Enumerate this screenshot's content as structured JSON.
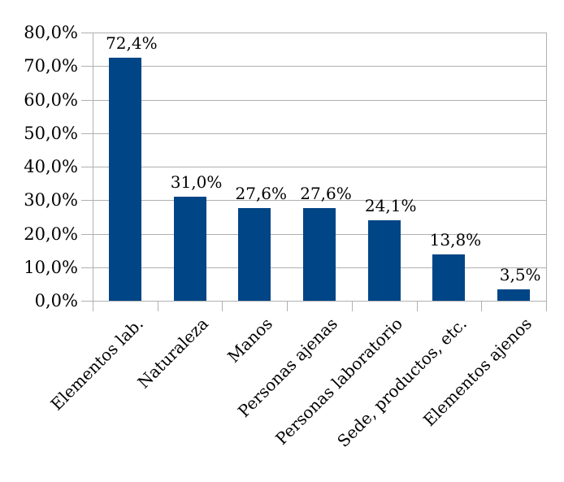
{
  "chart_data": {
    "type": "bar",
    "title": "",
    "xlabel": "",
    "ylabel": "",
    "legend": "none",
    "grid": "horizontal",
    "categories": [
      "Elementos lab.",
      "Naturaleza",
      "Manos",
      "Personas ajenas",
      "Personas laboratorio",
      "Sede, productos, etc.",
      "Elementos ajenos"
    ],
    "values": [
      72.4,
      31.0,
      27.6,
      27.6,
      24.1,
      13.8,
      3.5
    ],
    "value_labels": [
      "72,4%",
      "31,0%",
      "27,6%",
      "27,6%",
      "24,1%",
      "13,8%",
      "3,5%"
    ],
    "y_tick_labels": [
      "80,0%",
      "70,0%",
      "60,0%",
      "50,0%",
      "40,0%",
      "30,0%",
      "20,0%",
      "10,0%",
      "0,0%"
    ],
    "ylim": [
      0,
      80
    ],
    "y_step": 10,
    "colors": {
      "bar": "#004586",
      "grid": "#b0b0b0",
      "text": "#000000",
      "background": "#ffffff"
    }
  }
}
